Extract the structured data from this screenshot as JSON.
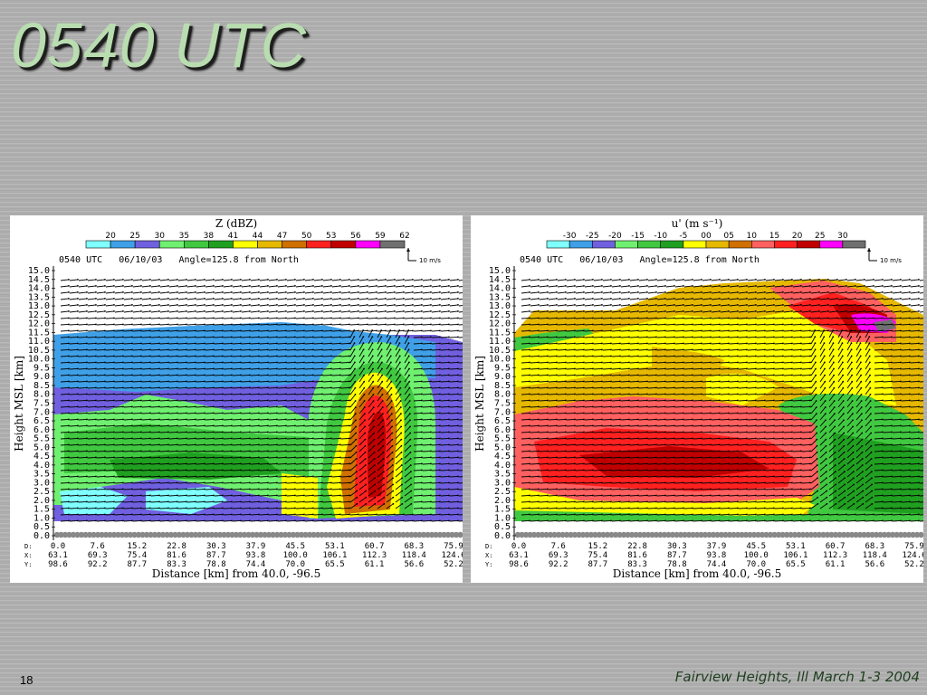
{
  "slide": {
    "title": "0540 UTC",
    "page_number": "18",
    "footer": "Fairview Heights, Ill March 1-3 2004"
  },
  "panels": [
    {
      "id": "left",
      "colorbar_title": "Z (dBZ)",
      "colorbar_labels": [
        "20",
        "25",
        "30",
        "35",
        "38",
        "41",
        "44",
        "47",
        "50",
        "53",
        "56",
        "59",
        "62"
      ],
      "colors": [
        "#7fffff",
        "#3fa0e8",
        "#7060e0",
        "#70f070",
        "#40c840",
        "#20a020",
        "#ffff00",
        "#e6b800",
        "#d07000",
        "#ff2020",
        "#c00000",
        "#ff00ff",
        "#707070"
      ],
      "ref_vector_label": "10 m/s",
      "subtitle": "0540 UTC   06/10/03   Angle=125.8 from North",
      "ylabel": "Height MSL [km]",
      "xlabel": "Distance [km] from 40.0, -96.5",
      "y_ticks": [
        "15.0",
        "14.5",
        "14.0",
        "13.5",
        "13.0",
        "12.5",
        "12.0",
        "11.5",
        "11.0",
        "10.5",
        "10.0",
        "9.5",
        "9.0",
        "8.5",
        "8.0",
        "7.5",
        "7.0",
        "6.5",
        "6.0",
        "5.5",
        "5.0",
        "4.5",
        "4.0",
        "3.5",
        "3.0",
        "2.5",
        "2.0",
        "1.5",
        "1.0",
        "0.5",
        "0.0"
      ],
      "row_labels": [
        "D:",
        "X:",
        "Y:"
      ],
      "d_values": [
        "0.0",
        "7.6",
        "15.2",
        "22.8",
        "30.3",
        "37.9",
        "45.5",
        "53.1",
        "60.7",
        "68.3",
        "75.9"
      ],
      "x_values": [
        "63.1",
        "69.3",
        "75.4",
        "81.6",
        "87.7",
        "93.8",
        "100.0",
        "106.1",
        "112.3",
        "118.4",
        "124.6"
      ],
      "y_values": [
        "98.6",
        "92.2",
        "87.7",
        "83.3",
        "78.8",
        "74.4",
        "70.0",
        "65.5",
        "61.1",
        "56.6",
        "52.2"
      ]
    },
    {
      "id": "right",
      "colorbar_title": "u' (m s⁻¹)",
      "colorbar_labels": [
        "-30",
        "-25",
        "-20",
        "-15",
        "-10",
        "-5",
        "00",
        "05",
        "10",
        "15",
        "20",
        "25",
        "30"
      ],
      "colors": [
        "#7fffff",
        "#3fa0e8",
        "#7060e0",
        "#70f070",
        "#40c840",
        "#20a020",
        "#ffff00",
        "#e6b800",
        "#d07000",
        "#ff6060",
        "#ff2020",
        "#c00000",
        "#ff00ff",
        "#707070"
      ],
      "ref_vector_label": "10 m/s",
      "subtitle": "0540 UTC   06/10/03   Angle=125.8 from North",
      "ylabel": "Height MSL [km]",
      "xlabel": "Distance [km] from 40.0, -96.5",
      "y_ticks": [
        "15.0",
        "14.5",
        "14.0",
        "13.5",
        "13.0",
        "12.5",
        "12.0",
        "11.5",
        "11.0",
        "10.5",
        "10.0",
        "9.5",
        "9.0",
        "8.5",
        "8.0",
        "7.5",
        "7.0",
        "6.5",
        "6.0",
        "5.5",
        "5.0",
        "4.5",
        "4.0",
        "3.5",
        "3.0",
        "2.5",
        "2.0",
        "1.5",
        "1.0",
        "0.5",
        "0.0"
      ],
      "row_labels": [
        "D:",
        "X:",
        "Y:"
      ],
      "d_values": [
        "0.0",
        "7.6",
        "15.2",
        "22.8",
        "30.3",
        "37.9",
        "45.5",
        "53.1",
        "60.7",
        "68.3",
        "75.9"
      ],
      "x_values": [
        "63.1",
        "69.3",
        "75.4",
        "81.6",
        "87.7",
        "93.8",
        "100.0",
        "106.1",
        "112.3",
        "118.4",
        "124.6"
      ],
      "y_values": [
        "98.6",
        "92.2",
        "87.7",
        "83.3",
        "78.8",
        "74.4",
        "70.0",
        "65.5",
        "61.1",
        "56.6",
        "52.2"
      ]
    }
  ]
}
